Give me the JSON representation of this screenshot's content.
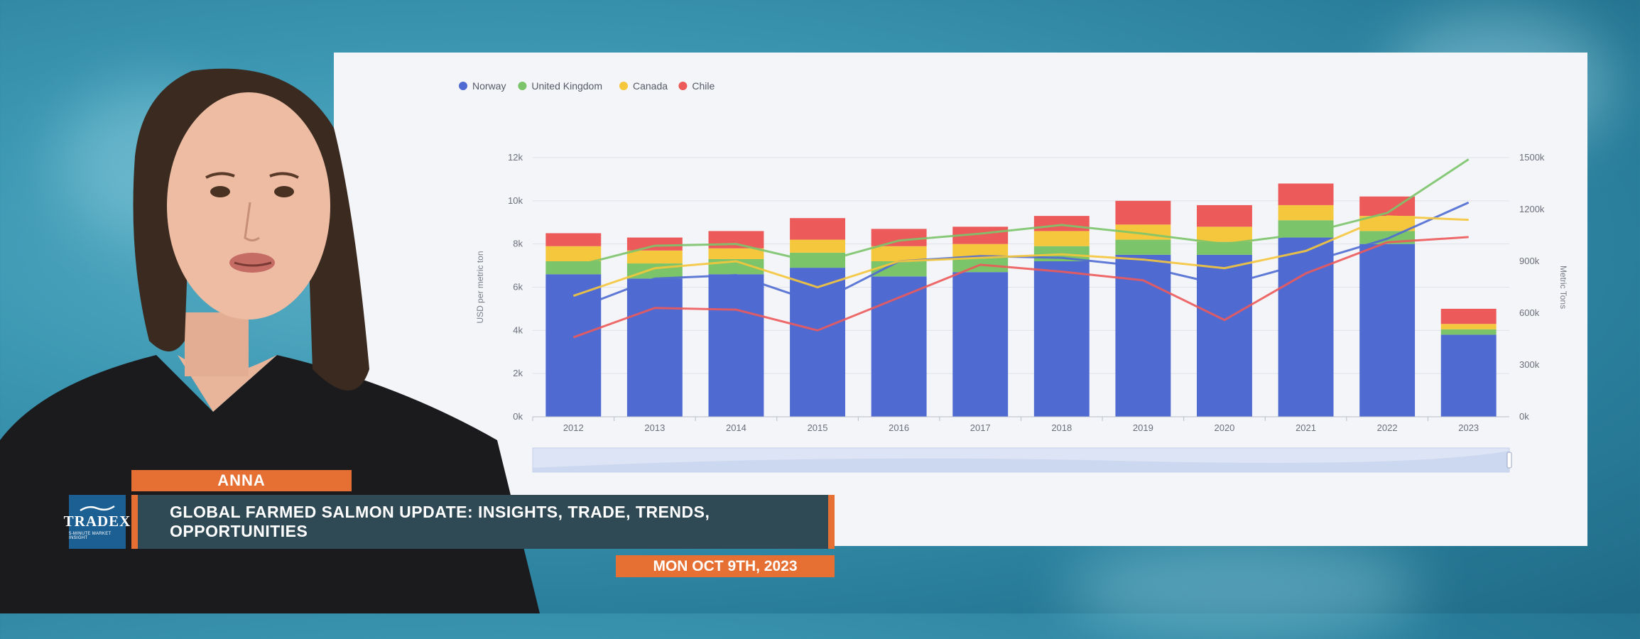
{
  "chart_data": {
    "type": "bar",
    "legend": {
      "placement": "top-left",
      "items": [
        {
          "name": "Norway",
          "color": "#4f6bd2"
        },
        {
          "name": "United Kingdom",
          "color": "#7cc46a"
        },
        {
          "name": "Canada",
          "color": "#f5c73c"
        },
        {
          "name": "Chile",
          "color": "#ec5a5a"
        }
      ]
    },
    "categories": [
      "2012",
      "2013",
      "2014",
      "2015",
      "2016",
      "2017",
      "2018",
      "2019",
      "2020",
      "2021",
      "2022",
      "2023"
    ],
    "bar_series": [
      {
        "name": "Norway",
        "color": "#4f6bd2",
        "values": [
          6600,
          6400,
          6600,
          6900,
          6500,
          6700,
          7200,
          7500,
          7500,
          8300,
          8000,
          3800
        ]
      },
      {
        "name": "United Kingdom",
        "color": "#7cc46a",
        "values": [
          600,
          700,
          700,
          700,
          700,
          700,
          700,
          700,
          600,
          800,
          600,
          250
        ]
      },
      {
        "name": "Canada",
        "color": "#f5c73c",
        "values": [
          700,
          600,
          500,
          600,
          700,
          600,
          700,
          700,
          700,
          700,
          700,
          250
        ]
      },
      {
        "name": "Chile",
        "color": "#ec5a5a",
        "values": [
          600,
          600,
          800,
          1000,
          800,
          800,
          700,
          1100,
          1000,
          1000,
          900,
          700
        ]
      }
    ],
    "line_series": [
      {
        "name": "Norway",
        "color": "#4f6bd2",
        "values": [
          620,
          800,
          820,
          660,
          900,
          930,
          920,
          870,
          760,
          890,
          1030,
          1240
        ]
      },
      {
        "name": "United Kingdom",
        "color": "#7cc46a",
        "values": [
          870,
          990,
          1000,
          890,
          1020,
          1060,
          1110,
          1060,
          1000,
          1060,
          1180,
          1490
        ]
      },
      {
        "name": "Canada",
        "color": "#f5c73c",
        "values": [
          700,
          860,
          900,
          750,
          900,
          920,
          940,
          910,
          860,
          960,
          1160,
          1140
        ]
      },
      {
        "name": "Chile",
        "color": "#ec5a5a",
        "values": [
          460,
          630,
          620,
          500,
          690,
          880,
          840,
          790,
          560,
          830,
          1010,
          1040
        ]
      }
    ],
    "y_left": {
      "label": "USD per metric ton",
      "lim": [
        0,
        12000
      ],
      "ticks": [
        "0k",
        "2k",
        "4k",
        "6k",
        "8k",
        "10k",
        "12k"
      ],
      "tick_values": [
        0,
        2000,
        4000,
        6000,
        8000,
        10000,
        12000
      ]
    },
    "y_right": {
      "label": "Metric Tons",
      "lim": [
        0,
        1500000
      ],
      "ticks": [
        "0k",
        "300k",
        "600k",
        "900k",
        "1200k",
        "1500k"
      ],
      "tick_values": [
        0,
        300,
        600,
        900,
        1200,
        1500
      ]
    },
    "grid": true
  },
  "lower_third": {
    "name": "ANNA",
    "title": "GLOBAL FARMED SALMON UPDATE: INSIGHTS, TRADE, TRENDS, OPPORTUNITIES",
    "date": "MON OCT 9TH, 2023",
    "logo_text": "TRADEX",
    "logo_subtext": "5-MINUTE MARKET INSIGHT"
  },
  "colors": {
    "accent": "#e66f33",
    "title_bar": "#2f4a55",
    "logo_bg": "#1c5f93"
  }
}
